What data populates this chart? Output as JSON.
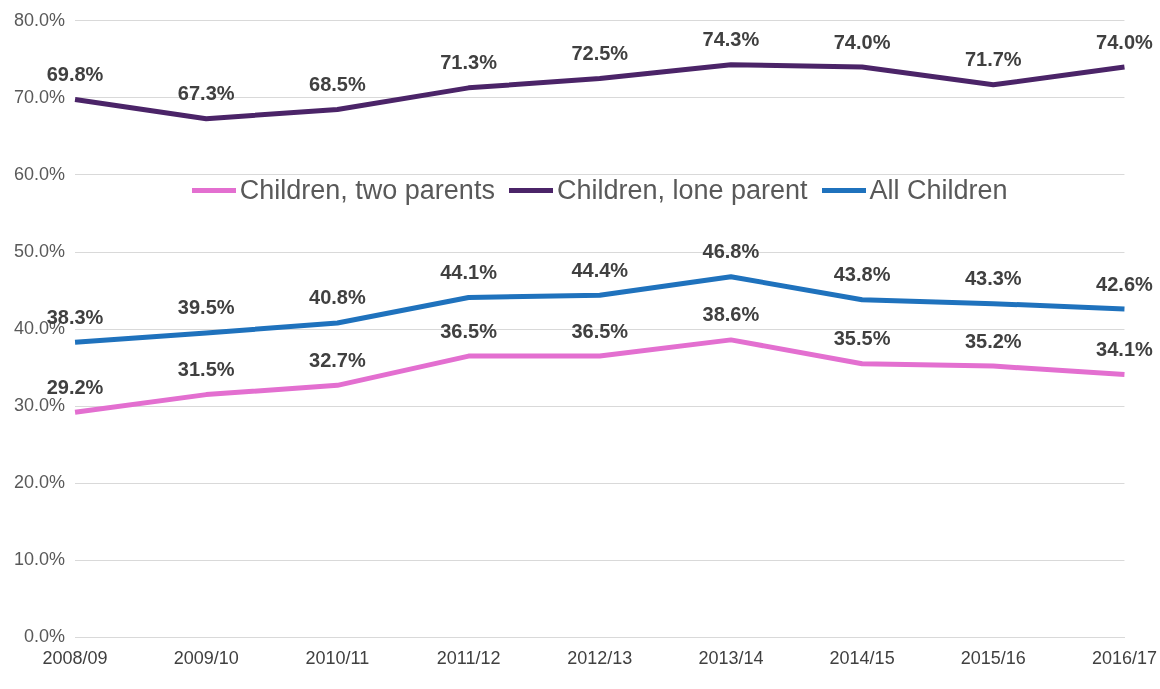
{
  "chart_data": {
    "type": "line",
    "categories": [
      "2008/09",
      "2009/10",
      "2010/11",
      "2011/12",
      "2012/13",
      "2013/14",
      "2014/15",
      "2015/16",
      "2016/17"
    ],
    "series": [
      {
        "name": "Children, two parents",
        "color": "#e36fd0",
        "values": [
          29.2,
          31.5,
          32.7,
          36.5,
          36.5,
          38.6,
          35.5,
          35.2,
          34.1
        ],
        "value_labels": [
          "29.2%",
          "31.5%",
          "32.7%",
          "36.5%",
          "36.5%",
          "38.6%",
          "35.5%",
          "35.2%",
          "34.1%"
        ]
      },
      {
        "name": "Children, lone parent",
        "color": "#4b2468",
        "values": [
          69.8,
          67.3,
          68.5,
          71.3,
          72.5,
          74.3,
          74.0,
          71.7,
          74.0
        ],
        "value_labels": [
          "69.8%",
          "67.3%",
          "68.5%",
          "71.3%",
          "72.5%",
          "74.3%",
          "74.0%",
          "71.7%",
          "74.0%"
        ]
      },
      {
        "name": "All Children",
        "color": "#1f72bd",
        "values": [
          38.3,
          39.5,
          40.8,
          44.1,
          44.4,
          46.8,
          43.8,
          43.3,
          42.6
        ],
        "value_labels": [
          "38.3%",
          "39.5%",
          "40.8%",
          "44.1%",
          "44.4%",
          "46.8%",
          "43.8%",
          "43.3%",
          "42.6%"
        ]
      }
    ],
    "ylim": [
      0,
      80
    ],
    "yticks": [
      {
        "value": 0,
        "label": "0.0%"
      },
      {
        "value": 10,
        "label": "10.0%"
      },
      {
        "value": 20,
        "label": "20.0%"
      },
      {
        "value": 30,
        "label": "30.0%"
      },
      {
        "value": 40,
        "label": "40.0%"
      },
      {
        "value": 50,
        "label": "50.0%"
      },
      {
        "value": 60,
        "label": "60.0%"
      },
      {
        "value": 70,
        "label": "70.0%"
      },
      {
        "value": 80,
        "label": "80.0%"
      }
    ],
    "grid": "y",
    "legend": "top",
    "marker": "none",
    "line_style": "solid"
  }
}
